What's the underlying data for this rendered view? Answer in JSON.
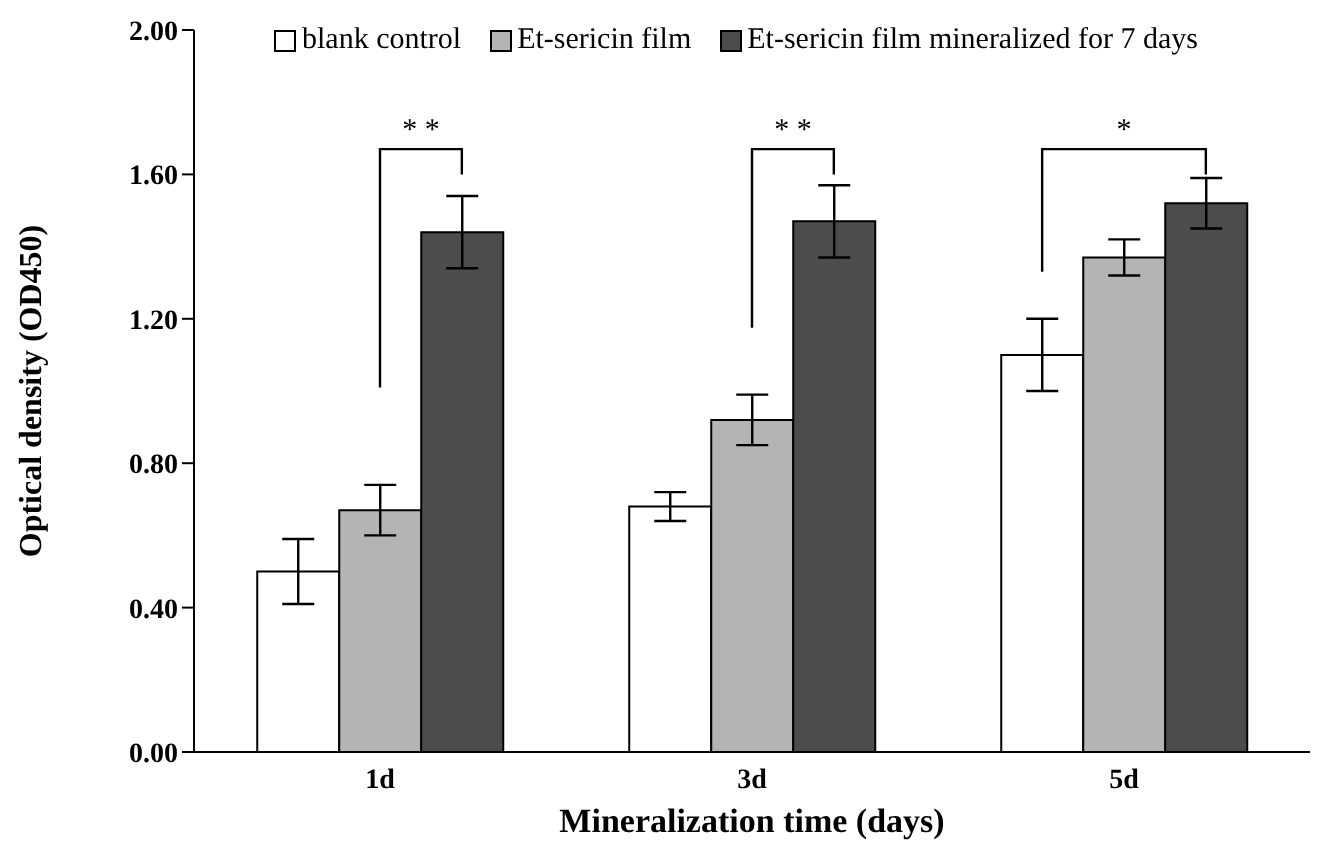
{
  "chart_data": {
    "type": "bar",
    "xlabel": "Mineralization time (days)",
    "ylabel": "Optical density (OD450)",
    "categories": [
      "1d",
      "3d",
      "5d"
    ],
    "series": [
      {
        "name": "blank control",
        "color": "#ffffff",
        "values": [
          0.5,
          0.68,
          1.1
        ],
        "errors": [
          0.09,
          0.04,
          0.1
        ]
      },
      {
        "name": "Et-sericin film",
        "color": "#b4b4b4",
        "values": [
          0.67,
          0.92,
          1.37
        ],
        "errors": [
          0.07,
          0.07,
          0.05
        ]
      },
      {
        "name": "Et-sericin film mineralized for 7 days",
        "color": "#4c4c4c",
        "values": [
          1.44,
          1.47,
          1.52
        ],
        "errors": [
          0.1,
          0.1,
          0.07
        ]
      }
    ],
    "ylim": [
      0,
      2
    ],
    "yticks": [
      {
        "value": 0,
        "label": "0.00"
      },
      {
        "value": 0.4,
        "label": "0.40"
      },
      {
        "value": 0.8,
        "label": "0.80"
      },
      {
        "value": 1.2,
        "label": "1.20"
      },
      {
        "value": 1.6,
        "label": "1.60"
      },
      {
        "value": 2,
        "label": "2.00"
      }
    ],
    "annotations": [
      "* *",
      "* *",
      "*"
    ],
    "legend": "top",
    "grid": false
  }
}
